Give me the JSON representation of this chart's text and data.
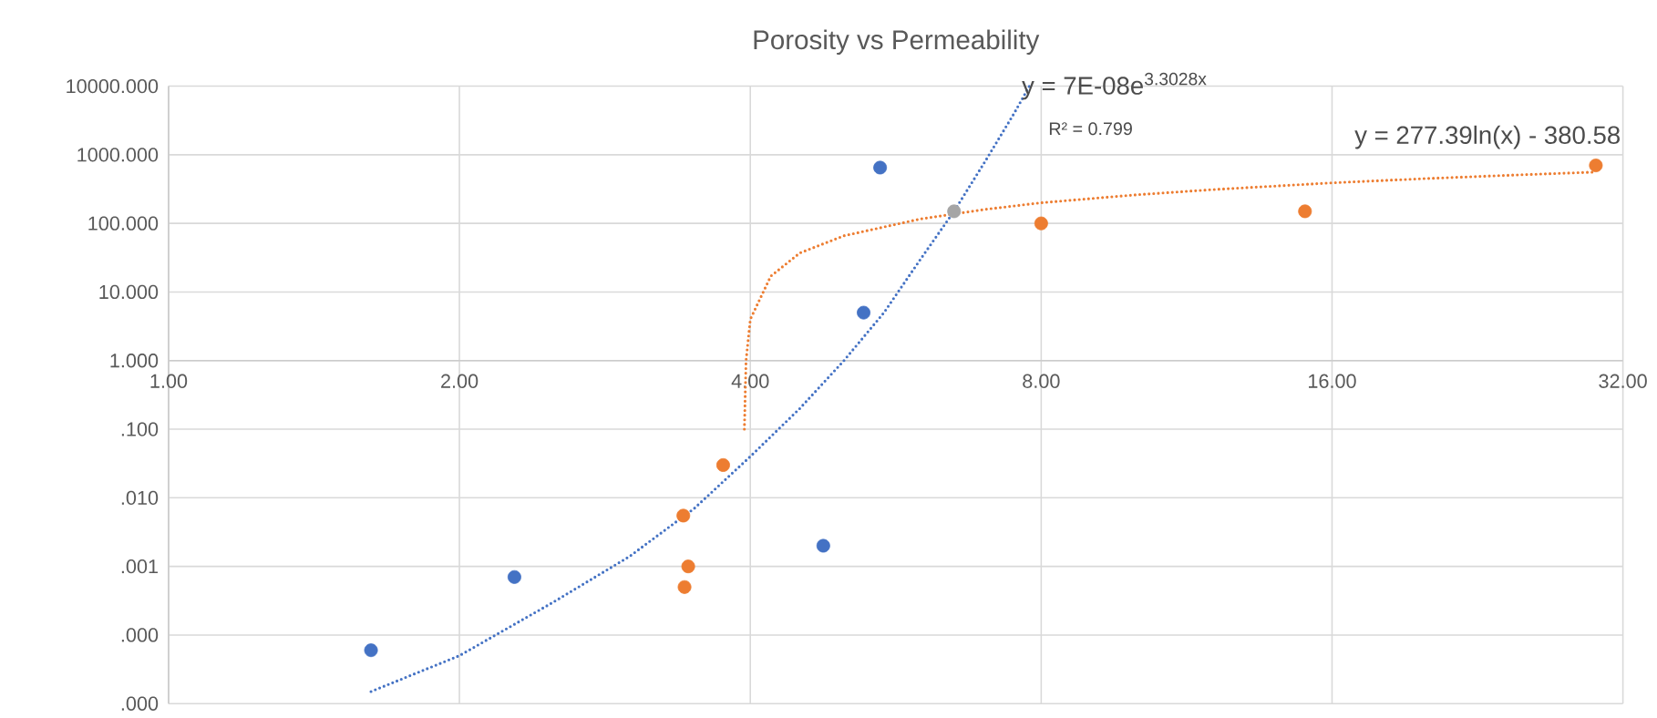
{
  "chart_data": {
    "type": "scatter",
    "title": "Porosity vs Permeability",
    "xlim": [
      1,
      32
    ],
    "ylim": [
      1e-05,
      10000
    ],
    "log": "xy",
    "grid": true,
    "xticks": [
      {
        "value": 1,
        "label": "1.00"
      },
      {
        "value": 2,
        "label": "2.00"
      },
      {
        "value": 4,
        "label": "4.00"
      },
      {
        "value": 8,
        "label": "8.00"
      },
      {
        "value": 16,
        "label": "16.00"
      },
      {
        "value": 32,
        "label": "32.00"
      }
    ],
    "yticks": [
      {
        "value": 1e-05,
        "label": ".000"
      },
      {
        "value": 0.0001,
        "label": ".000"
      },
      {
        "value": 0.001,
        "label": ".001"
      },
      {
        "value": 0.01,
        "label": ".010"
      },
      {
        "value": 0.1,
        "label": ".100"
      },
      {
        "value": 1,
        "label": "1.000"
      },
      {
        "value": 10,
        "label": "10.000"
      },
      {
        "value": 100,
        "label": "100.000"
      },
      {
        "value": 1000,
        "label": "1000.000"
      },
      {
        "value": 10000,
        "label": "10000.000"
      }
    ],
    "series": [
      {
        "type": "scatter",
        "marker": "circle",
        "color": "#4472c4",
        "x": [
          1.62,
          2.28,
          4.76,
          5.24,
          5.45
        ],
        "values": [
          6e-05,
          0.0007,
          0.002,
          5,
          650
        ]
      },
      {
        "type": "scatter",
        "marker": "circle",
        "color": "#ed7d31",
        "x": [
          3.41,
          3.45,
          3.42,
          3.75,
          8,
          15,
          30
        ],
        "values": [
          0.0055,
          0.001,
          0.0005,
          0.03,
          100,
          150,
          700
        ]
      },
      {
        "type": "scatter",
        "marker": "circle",
        "color": "#a5a5a5",
        "x": [
          6.5
        ],
        "values": [
          150
        ]
      },
      {
        "type": "line",
        "line_style": "dotted",
        "marker": "none",
        "color": "#4472c4",
        "x": [
          1.62,
          2,
          2.5,
          3,
          3.5,
          4,
          4.5,
          5,
          5.5,
          6,
          6.5,
          7,
          7.5,
          7.78
        ],
        "values": [
          1.5e-05,
          5e-05,
          0.0003,
          0.0014,
          0.007,
          0.04,
          0.2,
          1,
          5,
          30,
          150,
          800,
          4000,
          10000
        ]
      },
      {
        "type": "line",
        "line_style": "dotted",
        "marker": "none",
        "color": "#ed7d31",
        "x": [
          3.944,
          3.96,
          4,
          4.2,
          4.5,
          5,
          6,
          7,
          8,
          10,
          12,
          16,
          20,
          25,
          30
        ],
        "values": [
          0.1,
          1,
          4,
          17,
          37,
          66,
          116,
          160,
          200,
          260,
          310,
          390,
          450,
          510,
          560
        ]
      }
    ],
    "annotations": [
      "y = 7E-08e$^{3.3028x}$",
      "R² = 0.799",
      "y = 277.39ln(x) - 380.58"
    ]
  }
}
